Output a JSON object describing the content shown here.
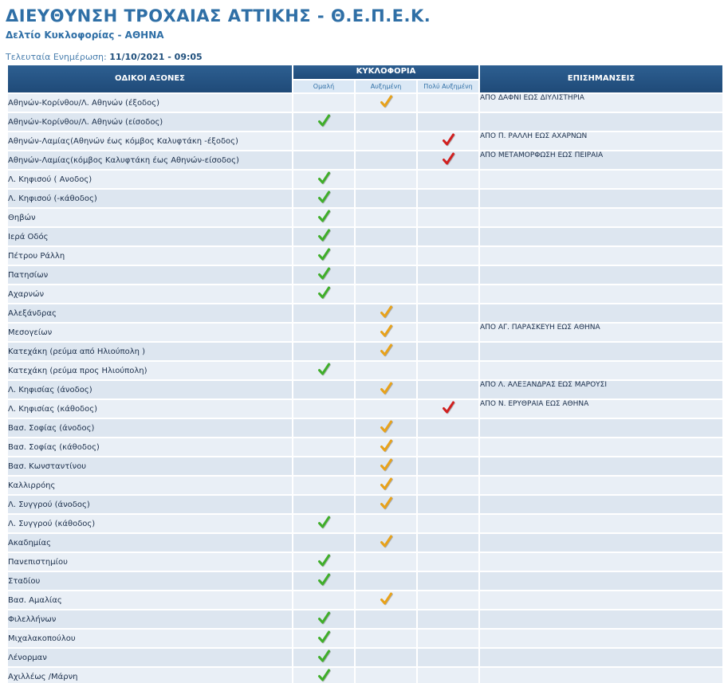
{
  "header": {
    "title": "ΔΙΕΥΘΥΝΣΗ ΤΡΟΧΑΙΑΣ ΑΤΤΙΚΗΣ - Θ.Ε.Π.Ε.Κ.",
    "subtitle": "Δελτίο Κυκλοφορίας - ΑΘΗΝΑ",
    "update_label": "Τελευταία Ενημέρωση:",
    "update_value": "11/10/2021 - 09:05"
  },
  "table": {
    "col_roads": "ΟΔΙΚΟΙ ΑΞΟΝΕΣ",
    "col_traffic": "ΚΥΚΛΟΦΟΡΙΑ",
    "col_notes": "ΕΠΙΣΗΜΑΝΣΕΙΣ",
    "status_labels": [
      "Ομαλή",
      "Αυξημένη",
      "Πολύ Αυξημένη"
    ]
  },
  "colors": {
    "normal": "#3fae2a",
    "increased": "#e8a21a",
    "heavy": "#d11f1f"
  },
  "rows": [
    {
      "road": "Αθηνών-Κορίνθου/Λ. Αθηνών (έξοδος)",
      "status": "increased",
      "note": "ΑΠΟ ΔΑΦΝΙ ΕΩΣ ΔΙΥΛΙΣΤΗΡΙΑ"
    },
    {
      "road": "Αθηνών-Κορίνθου/Λ. Αθηνών (είσοδος)",
      "status": "normal",
      "note": ""
    },
    {
      "road": "Αθηνών-Λαμίας(Αθηνών έως κόμβος Καλυφτάκη -έξοδος)",
      "status": "heavy",
      "note": "ΑΠΟ Π. ΡΑΛΛΗ ΕΩΣ ΑΧΑΡΝΩΝ"
    },
    {
      "road": "Αθηνών-Λαμίας(κόμβος Καλυφτάκη έως Αθηνών-είσοδος)",
      "status": "heavy",
      "note": "ΑΠΟ ΜΕΤΑΜΟΡΦΩΣΗ ΕΩΣ ΠΕΙΡΑΙΑ"
    },
    {
      "road": "Λ. Κηφισού ( Ανοδος)",
      "status": "normal",
      "note": ""
    },
    {
      "road": "Λ. Κηφισού (-κάθοδος)",
      "status": "normal",
      "note": ""
    },
    {
      "road": "Θηβών",
      "status": "normal",
      "note": ""
    },
    {
      "road": "Ιερά Οδός",
      "status": "normal",
      "note": ""
    },
    {
      "road": "Πέτρου Ράλλη",
      "status": "normal",
      "note": ""
    },
    {
      "road": "Πατησίων",
      "status": "normal",
      "note": ""
    },
    {
      "road": "Αχαρνών",
      "status": "normal",
      "note": ""
    },
    {
      "road": "Αλεξάνδρας",
      "status": "increased",
      "note": ""
    },
    {
      "road": "Μεσογείων",
      "status": "increased",
      "note": "ΑΠΟ ΑΓ. ΠΑΡΑΣΚΕΥΗ ΕΩΣ ΑΘΗΝΑ"
    },
    {
      "road": "Κατεχάκη (ρεύμα από Ηλιούπολη )",
      "status": "increased",
      "note": ""
    },
    {
      "road": "Κατεχάκη (ρεύμα προς Ηλιούπολη)",
      "status": "normal",
      "note": ""
    },
    {
      "road": "Λ. Κηφισίας (άνοδος)",
      "status": "increased",
      "note": "ΑΠΟ Λ. ΑΛΕΞΑΝΔΡΑΣ ΕΩΣ ΜΑΡΟΥΣΙ"
    },
    {
      "road": "Λ. Κηφισίας (κάθοδος)",
      "status": "heavy",
      "note": "ΑΠΟ Ν. ΕΡΥΘΡΑΙΑ ΕΩΣ ΑΘΗΝΑ"
    },
    {
      "road": "Βασ. Σοφίας (άνοδος)",
      "status": "increased",
      "note": ""
    },
    {
      "road": "Βασ. Σοφίας (κάθοδος)",
      "status": "increased",
      "note": ""
    },
    {
      "road": "Βασ. Κωνσταντίνου",
      "status": "increased",
      "note": ""
    },
    {
      "road": "Καλλιρρόης",
      "status": "increased",
      "note": ""
    },
    {
      "road": "Λ. Συγγρού (άνοδος)",
      "status": "increased",
      "note": ""
    },
    {
      "road": "Λ. Συγγρού (κάθοδος)",
      "status": "normal",
      "note": ""
    },
    {
      "road": "Ακαδημίας",
      "status": "increased",
      "note": ""
    },
    {
      "road": "Πανεπιστημίου",
      "status": "normal",
      "note": ""
    },
    {
      "road": "Σταδίου",
      "status": "normal",
      "note": ""
    },
    {
      "road": "Βασ. Αμαλίας",
      "status": "increased",
      "note": ""
    },
    {
      "road": "Φιλελλήνων",
      "status": "normal",
      "note": ""
    },
    {
      "road": "Μιχαλακοπούλου",
      "status": "normal",
      "note": ""
    },
    {
      "road": "Λένορμαν",
      "status": "normal",
      "note": ""
    },
    {
      "road": "Αχιλλέως /Μάρνη",
      "status": "normal",
      "note": ""
    }
  ]
}
